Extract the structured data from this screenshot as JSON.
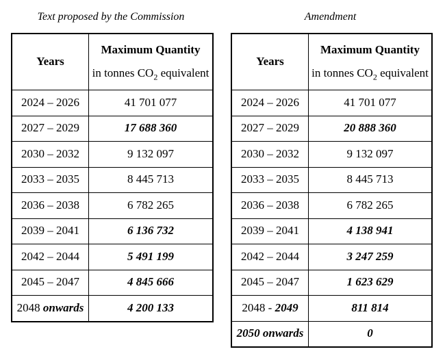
{
  "colors": {
    "background": "#ffffff",
    "border": "#000000",
    "text": "#000000"
  },
  "left_table": {
    "title": "Text proposed by the Commission",
    "header": {
      "years": "Years",
      "quantity_line1": "Maximum Quantity",
      "quantity_line2_pre": "in tonnes CO",
      "quantity_line2_sub": "2",
      "quantity_line2_post": " equivalent"
    },
    "rows": [
      {
        "years_pre": "2024 – 2026",
        "years_em": "",
        "value": "41 701 077",
        "value_emphasis": false
      },
      {
        "years_pre": "2027 – 2029",
        "years_em": "",
        "value": "17 688 360",
        "value_emphasis": true
      },
      {
        "years_pre": "2030 – 2032",
        "years_em": "",
        "value": "9 132 097",
        "value_emphasis": false
      },
      {
        "years_pre": "2033 – 2035",
        "years_em": "",
        "value": "8 445 713",
        "value_emphasis": false
      },
      {
        "years_pre": "2036 – 2038",
        "years_em": "",
        "value": "6 782 265",
        "value_emphasis": false
      },
      {
        "years_pre": "2039 – 2041",
        "years_em": "",
        "value": "6 136 732",
        "value_emphasis": true
      },
      {
        "years_pre": "2042 – 2044",
        "years_em": "",
        "value": "5 491 199",
        "value_emphasis": true
      },
      {
        "years_pre": "2045 – 2047",
        "years_em": "",
        "value": "4 845 666",
        "value_emphasis": true
      },
      {
        "years_pre": "2048 ",
        "years_em": "onwards",
        "value": "4 200 133",
        "value_emphasis": true
      }
    ]
  },
  "right_table": {
    "title": "Amendment",
    "header": {
      "years": "Years",
      "quantity_line1": "Maximum Quantity",
      "quantity_line2_pre": "in tonnes CO",
      "quantity_line2_sub": "2",
      "quantity_line2_post": " equivalent"
    },
    "rows": [
      {
        "years_pre": "2024 – 2026",
        "years_em": "",
        "value": "41 701 077",
        "value_emphasis": false
      },
      {
        "years_pre": "2027 – 2029",
        "years_em": "",
        "value": "20 888 360",
        "value_emphasis": true
      },
      {
        "years_pre": "2030 – 2032",
        "years_em": "",
        "value": "9 132 097",
        "value_emphasis": false
      },
      {
        "years_pre": "2033 – 2035",
        "years_em": "",
        "value": "8 445 713",
        "value_emphasis": false
      },
      {
        "years_pre": "2036 – 2038",
        "years_em": "",
        "value": "6 782 265",
        "value_emphasis": false
      },
      {
        "years_pre": "2039 – 2041",
        "years_em": "",
        "value": "4 138 941",
        "value_emphasis": true
      },
      {
        "years_pre": "2042 – 2044",
        "years_em": "",
        "value": "3 247 259",
        "value_emphasis": true
      },
      {
        "years_pre": "2045 – 2047",
        "years_em": "",
        "value": "1 623 629",
        "value_emphasis": true
      },
      {
        "years_pre": "2048 - ",
        "years_em": "2049",
        "value": "811 814",
        "value_emphasis": true
      },
      {
        "years_pre": "",
        "years_em": "2050 onwards",
        "value": "0",
        "value_emphasis": true
      }
    ]
  }
}
